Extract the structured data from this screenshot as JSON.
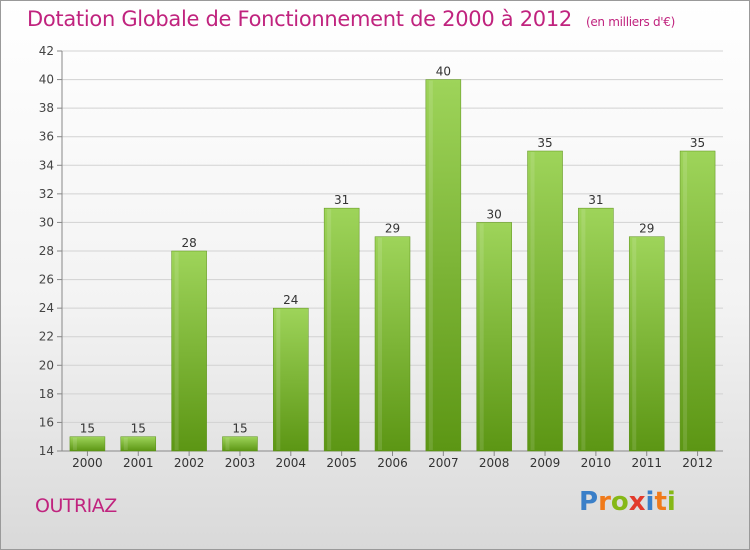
{
  "header": {
    "title": "Dotation Globale de Fonctionnement de 2000 à 2012",
    "subtitle": "(en milliers d'€)"
  },
  "footer": {
    "town": "OUTRIAZ",
    "logo_text": "Proxiti"
  },
  "colors": {
    "accent": "#c0237e",
    "bar_top": "#9ed45a",
    "bar_bottom": "#5c9614",
    "logo_letters": [
      "#3a7fc8",
      "#f07a1a",
      "#86b817",
      "#e23a2b",
      "#3a7fc8",
      "#f07a1a",
      "#86b817"
    ]
  },
  "chart_data": {
    "type": "bar",
    "categories": [
      "2000",
      "2001",
      "2002",
      "2003",
      "2004",
      "2005",
      "2006",
      "2007",
      "2008",
      "2009",
      "2010",
      "2011",
      "2012"
    ],
    "values": [
      15,
      15,
      28,
      15,
      24,
      31,
      29,
      40,
      30,
      35,
      31,
      29,
      35
    ],
    "ylim": [
      14,
      42
    ],
    "yticks": [
      14,
      16,
      18,
      20,
      22,
      24,
      26,
      28,
      30,
      32,
      34,
      36,
      38,
      40,
      42
    ],
    "grid": true,
    "data_labels": true
  }
}
